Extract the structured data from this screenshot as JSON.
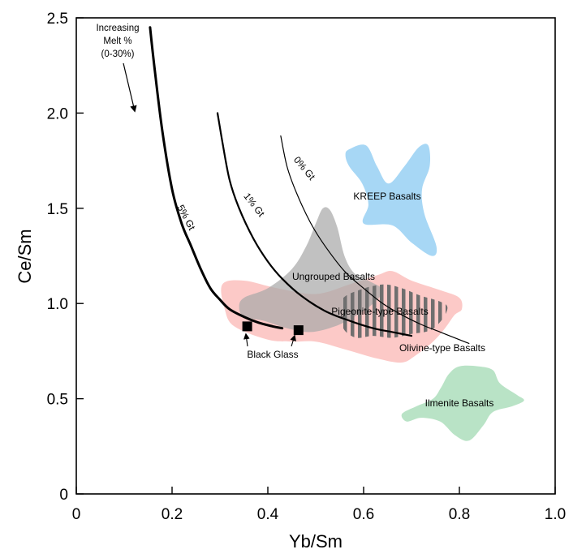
{
  "chart_data": {
    "type": "line",
    "title": "",
    "xlabel": "Yb/Sm",
    "ylabel": "Ce/Sm",
    "xlim": [
      0,
      1.0
    ],
    "ylim": [
      0,
      2.5
    ],
    "x_ticks": [
      "0",
      "0.2",
      "0.4",
      "0.6",
      "0.8",
      "1.0"
    ],
    "y_ticks": [
      "0",
      "0.5",
      "1.0",
      "1.5",
      "2.0",
      "2.5"
    ],
    "grid": false,
    "legend": "none",
    "series": [
      {
        "name": "5% Gt",
        "points": [
          [
            0.154,
            2.45
          ],
          [
            0.165,
            2.2
          ],
          [
            0.18,
            1.9
          ],
          [
            0.2,
            1.6
          ],
          [
            0.22,
            1.42
          ],
          [
            0.24,
            1.3
          ],
          [
            0.26,
            1.18
          ],
          [
            0.28,
            1.08
          ],
          [
            0.3,
            1.02
          ],
          [
            0.32,
            0.97
          ],
          [
            0.35,
            0.93
          ],
          [
            0.38,
            0.9
          ],
          [
            0.41,
            0.88
          ],
          [
            0.43,
            0.87
          ]
        ]
      },
      {
        "name": "1% Gt",
        "points": [
          [
            0.295,
            2.0
          ],
          [
            0.305,
            1.85
          ],
          [
            0.32,
            1.65
          ],
          [
            0.34,
            1.5
          ],
          [
            0.37,
            1.34
          ],
          [
            0.4,
            1.22
          ],
          [
            0.43,
            1.13
          ],
          [
            0.47,
            1.04
          ],
          [
            0.52,
            0.96
          ],
          [
            0.57,
            0.91
          ],
          [
            0.62,
            0.87
          ],
          [
            0.66,
            0.85
          ],
          [
            0.7,
            0.83
          ]
        ]
      },
      {
        "name": "0% Gt",
        "points": [
          [
            0.427,
            1.88
          ],
          [
            0.44,
            1.72
          ],
          [
            0.46,
            1.58
          ],
          [
            0.49,
            1.42
          ],
          [
            0.52,
            1.3
          ],
          [
            0.56,
            1.17
          ],
          [
            0.6,
            1.08
          ],
          [
            0.64,
            1.0
          ],
          [
            0.68,
            0.94
          ],
          [
            0.72,
            0.89
          ],
          [
            0.76,
            0.85
          ],
          [
            0.8,
            0.81
          ],
          [
            0.82,
            0.79
          ]
        ]
      }
    ],
    "markers": [
      {
        "name": "black-glass-1",
        "x": 0.357,
        "y": 0.88
      },
      {
        "name": "black-glass-2",
        "x": 0.464,
        "y": 0.86
      }
    ],
    "regions": [
      {
        "name": "KREEP Basalts",
        "color": "#a7d7f5",
        "points": [
          [
            0.57,
            1.81
          ],
          [
            0.605,
            1.83
          ],
          [
            0.628,
            1.72
          ],
          [
            0.652,
            1.63
          ],
          [
            0.685,
            1.72
          ],
          [
            0.715,
            1.82
          ],
          [
            0.735,
            1.83
          ],
          [
            0.738,
            1.72
          ],
          [
            0.722,
            1.6
          ],
          [
            0.727,
            1.47
          ],
          [
            0.752,
            1.3
          ],
          [
            0.742,
            1.25
          ],
          [
            0.7,
            1.32
          ],
          [
            0.66,
            1.41
          ],
          [
            0.6,
            1.42
          ],
          [
            0.61,
            1.52
          ],
          [
            0.597,
            1.63
          ],
          [
            0.57,
            1.72
          ],
          [
            0.562,
            1.78
          ]
        ]
      },
      {
        "name": "Ilmenite Basalts",
        "color": "#b9e3c6",
        "points": [
          [
            0.778,
            0.63
          ],
          [
            0.8,
            0.67
          ],
          [
            0.84,
            0.67
          ],
          [
            0.87,
            0.65
          ],
          [
            0.885,
            0.58
          ],
          [
            0.92,
            0.52
          ],
          [
            0.935,
            0.49
          ],
          [
            0.91,
            0.46
          ],
          [
            0.87,
            0.43
          ],
          [
            0.85,
            0.36
          ],
          [
            0.82,
            0.28
          ],
          [
            0.79,
            0.31
          ],
          [
            0.76,
            0.38
          ],
          [
            0.72,
            0.4
          ],
          [
            0.69,
            0.38
          ],
          [
            0.68,
            0.42
          ],
          [
            0.71,
            0.46
          ],
          [
            0.745,
            0.5
          ],
          [
            0.762,
            0.56
          ]
        ]
      },
      {
        "name": "Olivine-type Basalts",
        "color": "#fbbfbd",
        "opacity": 0.85,
        "points": [
          [
            0.35,
            1.12
          ],
          [
            0.42,
            1.08
          ],
          [
            0.5,
            1.05
          ],
          [
            0.57,
            1.1
          ],
          [
            0.63,
            1.15
          ],
          [
            0.66,
            1.17
          ],
          [
            0.7,
            1.12
          ],
          [
            0.76,
            1.07
          ],
          [
            0.8,
            1.03
          ],
          [
            0.805,
            0.97
          ],
          [
            0.79,
            0.94
          ],
          [
            0.77,
            0.87
          ],
          [
            0.745,
            0.8
          ],
          [
            0.71,
            0.73
          ],
          [
            0.68,
            0.69
          ],
          [
            0.63,
            0.71
          ],
          [
            0.56,
            0.76
          ],
          [
            0.5,
            0.8
          ],
          [
            0.45,
            0.8
          ],
          [
            0.4,
            0.81
          ],
          [
            0.33,
            0.88
          ],
          [
            0.31,
            0.97
          ],
          [
            0.305,
            1.1
          ]
        ]
      },
      {
        "name": "Ungrouped Basalts",
        "color": "#a9a9a9",
        "opacity": 0.72,
        "points": [
          [
            0.35,
            1.03
          ],
          [
            0.4,
            1.08
          ],
          [
            0.45,
            1.18
          ],
          [
            0.48,
            1.3
          ],
          [
            0.5,
            1.42
          ],
          [
            0.515,
            1.5
          ],
          [
            0.53,
            1.49
          ],
          [
            0.545,
            1.4
          ],
          [
            0.56,
            1.25
          ],
          [
            0.58,
            1.16
          ],
          [
            0.61,
            1.12
          ],
          [
            0.64,
            1.07
          ],
          [
            0.62,
            1.0
          ],
          [
            0.58,
            0.93
          ],
          [
            0.54,
            0.88
          ],
          [
            0.49,
            0.85
          ],
          [
            0.44,
            0.87
          ],
          [
            0.39,
            0.91
          ],
          [
            0.35,
            0.93
          ],
          [
            0.34,
            0.98
          ]
        ]
      },
      {
        "name": "Pigeonite-type Basalts",
        "color": "#7a7a7a",
        "hatched": true,
        "points": [
          [
            0.555,
            1.02
          ],
          [
            0.59,
            1.07
          ],
          [
            0.64,
            1.1
          ],
          [
            0.68,
            1.08
          ],
          [
            0.72,
            1.04
          ],
          [
            0.76,
            1.01
          ],
          [
            0.775,
            0.98
          ],
          [
            0.765,
            0.92
          ],
          [
            0.74,
            0.86
          ],
          [
            0.7,
            0.84
          ],
          [
            0.66,
            0.82
          ],
          [
            0.62,
            0.83
          ],
          [
            0.585,
            0.82
          ],
          [
            0.56,
            0.86
          ],
          [
            0.555,
            0.92
          ]
        ]
      }
    ],
    "annotations": {
      "melt_lines": [
        "Increasing",
        "Melt %",
        "(0-30%)"
      ],
      "black_glass": "Black Glass",
      "kreep": "KREEP Basalts",
      "ungrouped": "Ungrouped Basalts",
      "pigeonite": "Pigeonite-type Basalts",
      "olivine": "Olivine-type Basalts",
      "ilmenite": "Ilmenite Basalts",
      "curve_5": "5% Gt",
      "curve_1": "1% Gt",
      "curve_0": "0% Gt"
    }
  }
}
